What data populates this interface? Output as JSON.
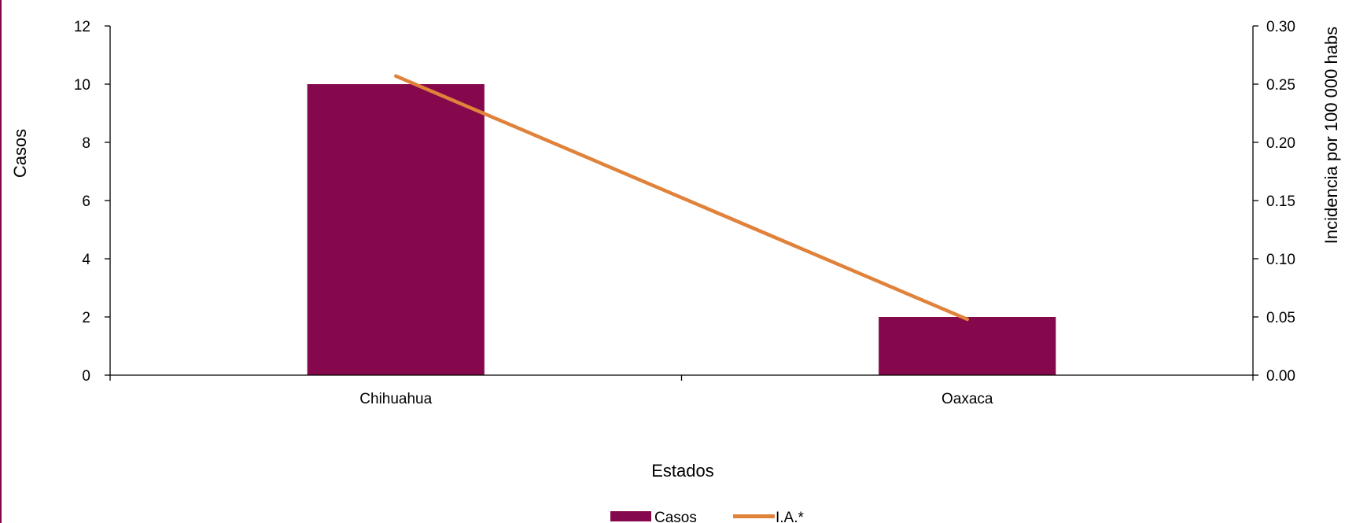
{
  "colors": {
    "bar": "#86084c",
    "line": "#e0823a",
    "left_border": "#86084c",
    "axis": "#000000"
  },
  "chart_data": {
    "type": "bar",
    "categories": [
      "Chihuahua",
      "Oaxaca"
    ],
    "series": [
      {
        "name": "Casos",
        "type": "bar",
        "axis": "left",
        "values": [
          10,
          2
        ]
      },
      {
        "name": "I.A.*",
        "type": "line",
        "axis": "right",
        "values": [
          0.257,
          0.048
        ]
      }
    ],
    "xlabel": "Estados",
    "ylabel": "Casos",
    "y2label": "Incidencia por 100 000 habs",
    "ylim": [
      0,
      12
    ],
    "y2lim": [
      0,
      0.3
    ],
    "yticks": [
      "0",
      "2",
      "4",
      "6",
      "8",
      "10",
      "12"
    ],
    "y2ticks": [
      "0.00",
      "0.05",
      "0.10",
      "0.15",
      "0.20",
      "0.25",
      "0.30"
    ],
    "grid": false,
    "legend_position": "bottom-center"
  }
}
